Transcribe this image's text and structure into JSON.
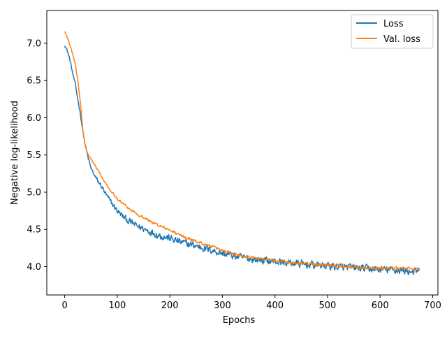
{
  "chart_data": {
    "type": "line",
    "title": "",
    "xlabel": "Epochs",
    "ylabel": "Negative log-likelihood",
    "xlim": [
      -34,
      710
    ],
    "ylim": [
      3.62,
      7.44
    ],
    "xticks": [
      0,
      100,
      200,
      300,
      400,
      500,
      600,
      700
    ],
    "yticks": [
      4.0,
      4.5,
      5.0,
      5.5,
      6.0,
      6.5,
      7.0
    ],
    "ytick_labels": [
      "4.0",
      "4.5",
      "5.0",
      "5.5",
      "6.0",
      "6.5",
      "7.0"
    ],
    "grid": false,
    "legend_position": "top-right",
    "noise_samples": 676,
    "series": [
      {
        "name": "Loss",
        "color": "#1f77b4",
        "noise_amplitude": 0.07,
        "x": [
          0,
          5,
          10,
          15,
          20,
          25,
          30,
          35,
          40,
          45,
          50,
          55,
          60,
          70,
          80,
          90,
          100,
          110,
          120,
          140,
          160,
          180,
          200,
          220,
          250,
          280,
          300,
          330,
          360,
          400,
          440,
          480,
          520,
          560,
          600,
          640,
          675
        ],
        "y": [
          6.98,
          6.9,
          6.78,
          6.6,
          6.45,
          6.25,
          6.05,
          5.8,
          5.6,
          5.45,
          5.32,
          5.25,
          5.18,
          5.08,
          4.95,
          4.85,
          4.75,
          4.68,
          4.62,
          4.54,
          4.48,
          4.42,
          4.38,
          4.33,
          4.28,
          4.22,
          4.18,
          4.13,
          4.1,
          4.07,
          4.04,
          4.02,
          4.0,
          3.98,
          3.96,
          3.95,
          3.93
        ]
      },
      {
        "name": "Val. loss",
        "color": "#ff7f0e",
        "noise_amplitude": 0.025,
        "x": [
          0,
          5,
          10,
          15,
          20,
          25,
          30,
          35,
          40,
          45,
          50,
          55,
          60,
          70,
          80,
          90,
          100,
          110,
          120,
          140,
          160,
          180,
          200,
          220,
          250,
          280,
          300,
          330,
          360,
          400,
          440,
          480,
          520,
          560,
          600,
          640,
          675
        ],
        "y": [
          7.16,
          7.08,
          6.97,
          6.86,
          6.72,
          6.5,
          6.2,
          5.8,
          5.6,
          5.5,
          5.44,
          5.39,
          5.34,
          5.21,
          5.09,
          5.0,
          4.91,
          4.85,
          4.79,
          4.7,
          4.62,
          4.55,
          4.49,
          4.42,
          4.34,
          4.27,
          4.22,
          4.16,
          4.12,
          4.08,
          4.05,
          4.03,
          4.01,
          3.99,
          3.98,
          3.98,
          3.97
        ]
      }
    ]
  }
}
